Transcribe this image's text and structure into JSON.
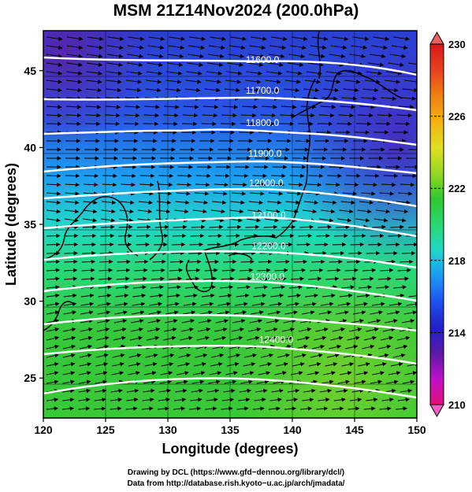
{
  "title": "MSM 21Z14Nov2024 (200.0hPa)",
  "map": {
    "xlabel": "Longitude (degrees)",
    "ylabel": "Latitude  (degrees)",
    "lon_range": [
      120,
      150
    ],
    "lat_range": [
      22.4,
      47.6
    ],
    "xticks": [
      120,
      125,
      130,
      135,
      140,
      145,
      150
    ],
    "yticks": [
      25,
      30,
      35,
      40,
      45
    ],
    "field": "temperature (shaded), geopotential height contours (white), wind vectors",
    "contours": [
      {
        "label": "11600.0",
        "lon": 137.6,
        "lat": 45.7
      },
      {
        "label": "11700.0",
        "lon": 137.6,
        "lat": 43.7
      },
      {
        "label": "11800.0",
        "lon": 137.6,
        "lat": 41.6
      },
      {
        "label": "11900.0",
        "lon": 137.8,
        "lat": 39.6
      },
      {
        "label": "12000.0",
        "lon": 137.9,
        "lat": 37.7
      },
      {
        "label": "12100.0",
        "lon": 138.1,
        "lat": 35.6
      },
      {
        "label": "12200.0",
        "lon": 138.1,
        "lat": 33.6
      },
      {
        "label": "12300.0",
        "lon": 138.0,
        "lat": 31.6
      },
      {
        "label": "12400.0",
        "lon": 138.7,
        "lat": 27.5
      }
    ]
  },
  "colorbar": {
    "ticks": [
      "230",
      "226",
      "222",
      "218",
      "214",
      "210"
    ],
    "range": [
      210,
      230
    ],
    "colors": [
      "#e0107a",
      "#c010c8",
      "#5a1aa8",
      "#2020c8",
      "#2050f0",
      "#1a9af5",
      "#20d8c8",
      "#28d870",
      "#30c830",
      "#98d820",
      "#e0e020",
      "#f5b010",
      "#f08010",
      "#e84020",
      "#d81818"
    ]
  },
  "credits": {
    "line1": "Drawing by DCL (https://www.gfd−dennou.org/library/dcl/)",
    "line2": "Data from http://database.rish.kyoto−u.ac.jp/arch/jmadata/"
  }
}
